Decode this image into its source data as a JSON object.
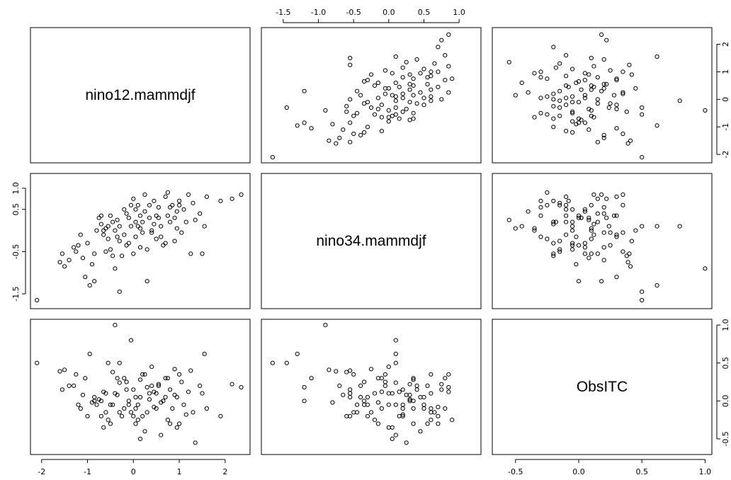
{
  "chart_data": {
    "type": "scatter",
    "title": "",
    "variables": [
      "nino12.mammdjf",
      "nino34.mammdjf",
      "ObsITC"
    ],
    "grid": false,
    "axes": {
      "nino12.mammdjf": {
        "range": [
          -2.15,
          2.45
        ],
        "ticks": [
          -2,
          -1,
          0,
          1,
          2
        ],
        "tick_labels": [
          "-2",
          "-1",
          "0",
          "1",
          "2"
        ],
        "drawn": [
          "bottom",
          "right"
        ]
      },
      "nino34.mammdjf": {
        "range": [
          -1.75,
          1.25
        ],
        "ticks": [
          -1.5,
          -1.0,
          -0.5,
          0.0,
          0.5,
          1.0
        ],
        "tick_labels": [
          "-1.5",
          "-1.0",
          "-0.5",
          "0.0",
          "0.5",
          "1.0"
        ],
        "drawn": [
          "top",
          "left"
        ],
        "left_ticks": [
          -1.5,
          -0.5,
          0.5,
          1.0
        ],
        "left_tick_labels": [
          "-1.5",
          "-0.5",
          "0.5",
          "1.0"
        ]
      },
      "ObsITC": {
        "range": [
          -0.65,
          1.02
        ],
        "ticks": [
          -0.5,
          0.0,
          0.5,
          1.0
        ],
        "tick_labels": [
          "-0.5",
          "0.0",
          "0.5",
          "1.0"
        ],
        "drawn": [
          "bottom",
          "right"
        ]
      }
    },
    "observations": [
      {
        "nino12": -2.1,
        "nino34": -1.65,
        "itc": 0.5
      },
      {
        "nino12": -1.6,
        "nino34": -0.75,
        "itc": 0.39
      },
      {
        "nino12": -1.5,
        "nino34": -0.85,
        "itc": 0.41
      },
      {
        "nino12": -1.55,
        "nino34": -0.55,
        "itc": 0.15
      },
      {
        "nino12": -1.4,
        "nino34": -0.7,
        "itc": 0.2
      },
      {
        "nino12": -1.3,
        "nino34": -0.4,
        "itc": 0.2
      },
      {
        "nino12": -1.2,
        "nino34": -0.35,
        "itc": -0.05
      },
      {
        "nino12": -1.25,
        "nino34": -0.5,
        "itc": 0.35
      },
      {
        "nino12": -1.1,
        "nino34": -0.65,
        "itc": 0.08
      },
      {
        "nino12": -1.15,
        "nino34": -0.1,
        "itc": -0.1
      },
      {
        "nino12": -1.05,
        "nino34": -1.1,
        "itc": 0.3
      },
      {
        "nino12": -0.95,
        "nino34": -1.3,
        "itc": 0.62
      },
      {
        "nino12": -0.9,
        "nino34": -0.8,
        "itc": -0.02
      },
      {
        "nino12": -0.85,
        "nino34": -1.2,
        "itc": 0.0
      },
      {
        "nino12": -0.8,
        "nino34": 0.0,
        "itc": -0.05
      },
      {
        "nino12": -0.75,
        "nino34": 0.3,
        "itc": 0.02
      },
      {
        "nino12": -0.7,
        "nino34": 0.15,
        "itc": -0.2
      },
      {
        "nino12": -0.65,
        "nino34": 0.0,
        "itc": -0.35
      },
      {
        "nino12": -0.6,
        "nino34": 0.05,
        "itc": 0.1
      },
      {
        "nino12": -0.55,
        "nino34": -0.2,
        "itc": -0.25
      },
      {
        "nino12": -0.5,
        "nino34": -0.45,
        "itc": -0.05
      },
      {
        "nino12": -0.45,
        "nino34": -0.6,
        "itc": 0.38
      },
      {
        "nino12": -0.4,
        "nino34": -0.9,
        "itc": 1.0
      },
      {
        "nino12": -0.35,
        "nino34": 0.25,
        "itc": 0.08
      },
      {
        "nino12": -0.3,
        "nino34": 0.1,
        "itc": 0.24
      },
      {
        "nino12": -0.3,
        "nino34": -0.25,
        "itc": -0.15
      },
      {
        "nino12": -0.2,
        "nino34": -0.1,
        "itc": 0.3
      },
      {
        "nino12": -0.15,
        "nino34": 0.4,
        "itc": 0.15
      },
      {
        "nino12": -0.1,
        "nino34": -0.3,
        "itc": -0.05
      },
      {
        "nino12": -0.05,
        "nino34": 0.1,
        "itc": 0.8
      },
      {
        "nino12": 0.0,
        "nino34": -0.55,
        "itc": -0.2
      },
      {
        "nino12": 0.05,
        "nino34": 0.2,
        "itc": -0.1
      },
      {
        "nino12": 0.1,
        "nino34": 0.6,
        "itc": -0.25
      },
      {
        "nino12": 0.15,
        "nino34": -0.4,
        "itc": 0.05
      },
      {
        "nino12": 0.2,
        "nino34": -0.05,
        "itc": 0.35
      },
      {
        "nino12": 0.25,
        "nino34": 0.45,
        "itc": -0.4
      },
      {
        "nino12": 0.3,
        "nino34": -1.2,
        "itc": 0.18
      },
      {
        "nino12": 0.35,
        "nino34": 0.3,
        "itc": 0.02
      },
      {
        "nino12": 0.4,
        "nino34": 0.0,
        "itc": 0.45
      },
      {
        "nino12": 0.45,
        "nino34": 0.7,
        "itc": -0.08
      },
      {
        "nino12": 0.5,
        "nino34": -0.2,
        "itc": 0.1
      },
      {
        "nino12": 0.55,
        "nino34": 0.55,
        "itc": 0.2
      },
      {
        "nino12": 0.6,
        "nino34": 0.1,
        "itc": -0.45
      },
      {
        "nino12": 0.65,
        "nino34": -0.35,
        "itc": 0.0
      },
      {
        "nino12": 0.7,
        "nino34": 0.8,
        "itc": 0.3
      },
      {
        "nino12": 0.75,
        "nino34": 0.9,
        "itc": -0.25
      },
      {
        "nino12": 0.8,
        "nino34": 0.2,
        "itc": 0.15
      },
      {
        "nino12": 0.85,
        "nino34": 0.6,
        "itc": -0.1
      },
      {
        "nino12": 0.9,
        "nino34": -0.25,
        "itc": 0.42
      },
      {
        "nino12": 0.95,
        "nino34": 0.45,
        "itc": 0.05
      },
      {
        "nino12": 1.0,
        "nino34": 0.7,
        "itc": -0.3
      },
      {
        "nino12": 1.05,
        "nino34": -0.05,
        "itc": 0.25
      },
      {
        "nino12": 1.1,
        "nino34": 0.5,
        "itc": -0.05
      },
      {
        "nino12": 1.2,
        "nino34": 0.85,
        "itc": 0.12
      },
      {
        "nino12": 1.25,
        "nino34": -0.55,
        "itc": 0.4
      },
      {
        "nino12": 1.3,
        "nino34": 0.65,
        "itc": -0.15
      },
      {
        "nino12": 1.35,
        "nino34": 0.25,
        "itc": -0.55
      },
      {
        "nino12": 1.45,
        "nino34": 0.4,
        "itc": 0.2
      },
      {
        "nino12": 1.5,
        "nino34": -0.55,
        "itc": 0.1
      },
      {
        "nino12": 1.55,
        "nino34": 0.1,
        "itc": 0.62
      },
      {
        "nino12": 1.6,
        "nino34": 0.8,
        "itc": -0.1
      },
      {
        "nino12": 1.9,
        "nino34": 0.7,
        "itc": -0.2
      },
      {
        "nino12": 2.15,
        "nino34": 0.75,
        "itc": 0.22
      },
      {
        "nino12": 2.35,
        "nino34": 0.85,
        "itc": 0.18
      },
      {
        "nino12": -0.6,
        "nino34": -0.5,
        "itc": -0.15
      },
      {
        "nino12": -0.5,
        "nino34": 0.35,
        "itc": -0.3
      },
      {
        "nino12": -0.4,
        "nino34": 0.0,
        "itc": 0.1
      },
      {
        "nino12": -0.25,
        "nino34": -0.6,
        "itc": -0.2
      },
      {
        "nino12": -0.1,
        "nino34": 0.3,
        "itc": 0.0
      },
      {
        "nino12": 0.05,
        "nino34": -0.15,
        "itc": -0.3
      },
      {
        "nino12": 0.15,
        "nino34": 0.35,
        "itc": 0.28
      },
      {
        "nino12": 0.3,
        "nino34": -0.45,
        "itc": -0.15
      },
      {
        "nino12": 0.45,
        "nino34": 0.15,
        "itc": 0.12
      },
      {
        "nino12": 0.6,
        "nino34": -0.15,
        "itc": -0.02
      },
      {
        "nino12": 0.75,
        "nino34": 0.35,
        "itc": 0.3
      },
      {
        "nino12": -0.7,
        "nino34": 0.35,
        "itc": 0.0
      },
      {
        "nino12": -0.2,
        "nino34": 0.5,
        "itc": -0.1
      },
      {
        "nino12": 0.35,
        "nino34": 0.6,
        "itc": 0.1
      },
      {
        "nino12": 0.95,
        "nino34": 0.05,
        "itc": -0.35
      },
      {
        "nino12": -0.85,
        "nino34": -0.55,
        "itc": 0.05
      },
      {
        "nino12": -0.35,
        "nino34": -0.15,
        "itc": 0.3
      },
      {
        "nino12": 0.1,
        "nino34": 0.1,
        "itc": -0.05
      },
      {
        "nino12": 0.55,
        "nino34": 0.3,
        "itc": 0.22
      },
      {
        "nino12": 1.15,
        "nino34": 0.2,
        "itc": -0.18
      },
      {
        "nino12": -1.0,
        "nino34": -0.3,
        "itc": -0.2
      },
      {
        "nino12": -0.55,
        "nino34": 0.1,
        "itc": 0.5
      },
      {
        "nino12": 0.0,
        "nino34": 0.75,
        "itc": 0.15
      },
      {
        "nino12": 0.2,
        "nino34": 0.2,
        "itc": -0.2
      },
      {
        "nino12": 0.7,
        "nino34": -0.3,
        "itc": 0.05
      },
      {
        "nino12": -0.3,
        "nino34": -1.45,
        "itc": 0.5
      },
      {
        "nino12": 0.25,
        "nino34": 0.85,
        "itc": 0.35
      },
      {
        "nino12": 0.8,
        "nino34": 0.55,
        "itc": -0.3
      },
      {
        "nino12": -0.45,
        "nino34": 0.2,
        "itc": -0.05
      },
      {
        "nino12": 0.4,
        "nino34": -0.05,
        "itc": 0.2
      },
      {
        "nino12": 0.05,
        "nino34": 0.5,
        "itc": 0.05
      },
      {
        "nino12": -0.15,
        "nino34": -0.35,
        "itc": 0.25
      },
      {
        "nino12": 0.5,
        "nino34": 0.35,
        "itc": -0.1
      },
      {
        "nino12": 0.9,
        "nino34": 0.3,
        "itc": 0.08
      },
      {
        "nino12": -0.65,
        "nino34": -0.1,
        "itc": 0.12
      },
      {
        "nino12": 0.15,
        "nino34": 0.05,
        "itc": -0.5
      },
      {
        "nino12": 1.0,
        "nino34": 0.6,
        "itc": 0.35
      },
      {
        "nino12": -0.05,
        "nino34": 0.6,
        "itc": -0.15
      }
    ]
  }
}
